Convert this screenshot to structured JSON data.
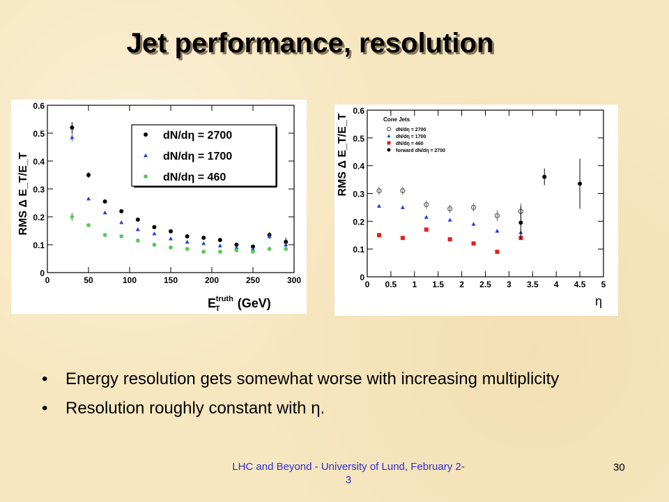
{
  "slide": {
    "title": "Jet performance, resolution",
    "bullets": [
      "Energy resolution gets somewhat worse with increasing multiplicity",
      "Resolution roughly constant with η."
    ],
    "footer": "LHC and Beyond - University of Lund, February 2-3",
    "page_number": "30"
  },
  "chart_data": [
    {
      "type": "scatter",
      "xlabel_main": "E",
      "xlabel_sub": "T",
      "xlabel_sup": "truth",
      "xlabel_unit": "(GeV)",
      "ylabel": "RMS Δ E_T/E_T",
      "xlim": [
        0,
        300
      ],
      "ylim": [
        0,
        0.6
      ],
      "xticks": [
        0,
        50,
        100,
        150,
        200,
        250,
        300
      ],
      "yticks": [
        0,
        0.1,
        0.2,
        0.3,
        0.4,
        0.5,
        0.6
      ],
      "legend_position": "top-right",
      "series": [
        {
          "name": "dN/dη = 2700",
          "marker": "circle",
          "color": "#000000",
          "x": [
            30,
            50,
            70,
            90,
            110,
            130,
            150,
            170,
            190,
            210,
            230,
            250,
            270,
            290
          ],
          "y": [
            0.52,
            0.35,
            0.255,
            0.22,
            0.19,
            0.163,
            0.148,
            0.13,
            0.125,
            0.117,
            0.1,
            0.093,
            0.135,
            0.11
          ]
        },
        {
          "name": "dN/dη = 1700",
          "marker": "triangle",
          "color": "#1f3fd8",
          "x": [
            30,
            50,
            70,
            90,
            110,
            130,
            150,
            170,
            190,
            210,
            230,
            250,
            270,
            290
          ],
          "y": [
            0.485,
            0.265,
            0.215,
            0.18,
            0.155,
            0.14,
            0.122,
            0.11,
            0.105,
            0.097,
            0.09,
            0.085,
            0.13,
            0.1
          ]
        },
        {
          "name": "dN/dη = 460",
          "marker": "star",
          "color": "#55c855",
          "x": [
            30,
            50,
            70,
            90,
            110,
            130,
            150,
            170,
            190,
            210,
            230,
            250,
            270,
            290
          ],
          "y": [
            0.2,
            0.17,
            0.135,
            0.13,
            0.115,
            0.1,
            0.09,
            0.085,
            0.075,
            0.075,
            0.08,
            0.075,
            0.085,
            0.085
          ]
        }
      ]
    },
    {
      "type": "scatter",
      "xlabel": "η",
      "ylabel": "RMS Δ E_T/E_T",
      "xlim": [
        0,
        5
      ],
      "ylim": [
        0,
        0.6
      ],
      "xticks": [
        0,
        0.5,
        1,
        1.5,
        2,
        2.5,
        3,
        3.5,
        4,
        4.5,
        5
      ],
      "yticks": [
        0,
        0.1,
        0.2,
        0.3,
        0.4,
        0.5,
        0.6
      ],
      "legend_title": "Cone Jets",
      "legend_position": "top-left",
      "series": [
        {
          "name": "dN/dη = 2700",
          "marker": "open-circle",
          "color": "#666666",
          "x": [
            0.25,
            0.75,
            1.25,
            1.75,
            2.25,
            2.75,
            3.25
          ],
          "y": [
            0.31,
            0.31,
            0.26,
            0.245,
            0.25,
            0.22,
            0.235
          ]
        },
        {
          "name": "dN/dη = 1700",
          "marker": "triangle",
          "color": "#1f3fd8",
          "x": [
            0.25,
            0.75,
            1.25,
            1.75,
            2.25,
            2.75,
            3.25
          ],
          "y": [
            0.255,
            0.25,
            0.215,
            0.205,
            0.19,
            0.165,
            0.16
          ]
        },
        {
          "name": "dN/dη = 460",
          "marker": "square",
          "color": "#e02020",
          "x": [
            0.25,
            0.75,
            1.25,
            1.75,
            2.25,
            2.75,
            3.25
          ],
          "y": [
            0.15,
            0.14,
            0.17,
            0.135,
            0.12,
            0.09,
            0.14
          ]
        },
        {
          "name": "forward dN/dη = 2700",
          "marker": "circle",
          "color": "#000000",
          "x": [
            3.25,
            3.75,
            4.5
          ],
          "y": [
            0.195,
            0.36,
            0.335
          ]
        }
      ]
    }
  ]
}
